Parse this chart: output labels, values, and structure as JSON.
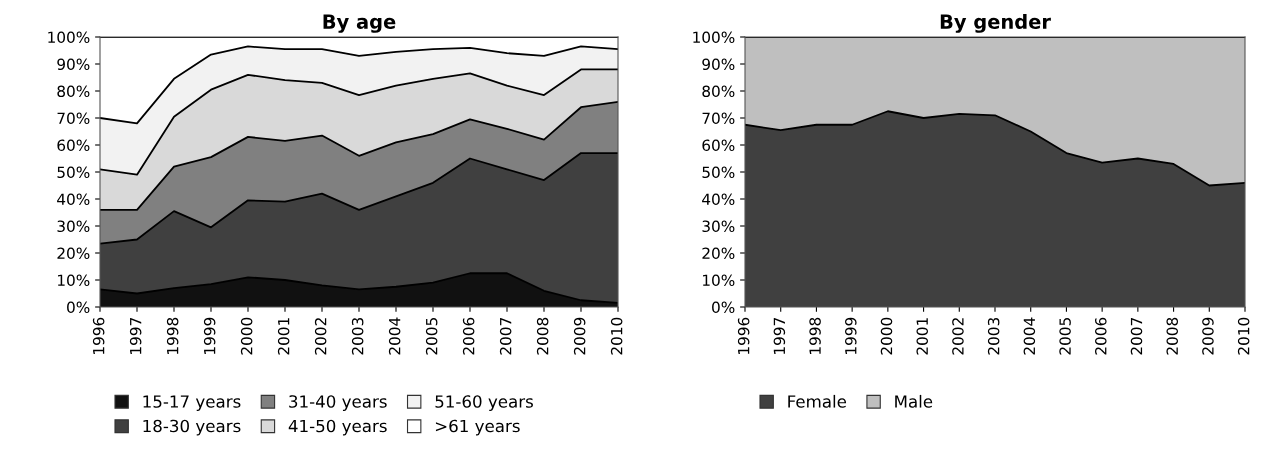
{
  "chart_data": [
    {
      "type": "area",
      "stacked": true,
      "title": "By age",
      "categories": [
        "1996",
        "1997",
        "1998",
        "1999",
        "2000",
        "2001",
        "2002",
        "2003",
        "2004",
        "2005",
        "2006",
        "2007",
        "2008",
        "2009",
        "2010"
      ],
      "ylim": [
        0,
        100
      ],
      "yticks": [
        {
          "value": 0,
          "label": "0%"
        },
        {
          "value": 10,
          "label": "10%"
        },
        {
          "value": 20,
          "label": "20%"
        },
        {
          "value": 30,
          "label": "30%"
        },
        {
          "value": 40,
          "label": "40%"
        },
        {
          "value": 50,
          "label": "50%"
        },
        {
          "value": 60,
          "label": "60%"
        },
        {
          "value": 70,
          "label": "70%"
        },
        {
          "value": 80,
          "label": "80%"
        },
        {
          "value": 90,
          "label": "90%"
        },
        {
          "value": 100,
          "label": "100%"
        }
      ],
      "legend": "bottom",
      "grid": false,
      "series": [
        {
          "name": "15-17 years",
          "color": "#111111",
          "values": [
            6.5,
            5,
            7,
            8.5,
            11,
            10,
            8,
            6.5,
            7.5,
            9,
            12.5,
            12.5,
            6,
            2.5,
            1.5
          ]
        },
        {
          "name": "18-30 years",
          "color": "#404040",
          "values": [
            17,
            20,
            28.5,
            21,
            28.5,
            29,
            34,
            29.5,
            33.5,
            37,
            42.5,
            38.5,
            41,
            54.5,
            55.5
          ]
        },
        {
          "name": "31-40 years",
          "color": "#808080",
          "values": [
            12.5,
            11,
            16.5,
            26,
            23.5,
            22.5,
            21.5,
            20,
            20,
            18,
            14.5,
            15,
            15,
            17,
            19
          ]
        },
        {
          "name": "41-50 years",
          "color": "#d9d9d9",
          "values": [
            15,
            13,
            18.5,
            25,
            23,
            22.5,
            19.5,
            22.5,
            21,
            20.5,
            17,
            16,
            16.5,
            14,
            12
          ]
        },
        {
          "name": "51-60 years",
          "color": "#f2f2f2",
          "values": [
            19,
            19,
            14,
            13,
            10.5,
            11.5,
            12.5,
            14.5,
            12.5,
            11,
            9.5,
            12,
            14.5,
            8.5,
            7.5
          ]
        },
        {
          "name": ">61 years",
          "color": "#ffffff",
          "values": [
            30,
            32,
            15.5,
            6.5,
            3.5,
            4.5,
            4.5,
            7,
            5.5,
            4.5,
            4,
            6,
            7,
            3.5,
            4.5
          ]
        }
      ]
    },
    {
      "type": "area",
      "stacked": true,
      "title": "By gender",
      "categories": [
        "1996",
        "1997",
        "1998",
        "1999",
        "2000",
        "2001",
        "2002",
        "2003",
        "2004",
        "2005",
        "2006",
        "2007",
        "2008",
        "2009",
        "2010"
      ],
      "ylim": [
        0,
        100
      ],
      "yticks": [
        {
          "value": 0,
          "label": "0%"
        },
        {
          "value": 10,
          "label": "10%"
        },
        {
          "value": 20,
          "label": "20%"
        },
        {
          "value": 30,
          "label": "30%"
        },
        {
          "value": 40,
          "label": "40%"
        },
        {
          "value": 50,
          "label": "50%"
        },
        {
          "value": 60,
          "label": "60%"
        },
        {
          "value": 70,
          "label": "70%"
        },
        {
          "value": 80,
          "label": "80%"
        },
        {
          "value": 90,
          "label": "90%"
        },
        {
          "value": 100,
          "label": "100%"
        }
      ],
      "legend": "bottom",
      "grid": false,
      "series": [
        {
          "name": "Female",
          "color": "#404040",
          "values": [
            67.5,
            65.5,
            67.5,
            67.5,
            72.5,
            70,
            71.5,
            71,
            65,
            57,
            53.5,
            55,
            53,
            45,
            46
          ]
        },
        {
          "name": "Male",
          "color": "#bfbfbf",
          "values": [
            32.5,
            34.5,
            32.5,
            32.5,
            27.5,
            30,
            28.5,
            29,
            35,
            43,
            46.5,
            45,
            47,
            55,
            54
          ]
        }
      ]
    }
  ]
}
